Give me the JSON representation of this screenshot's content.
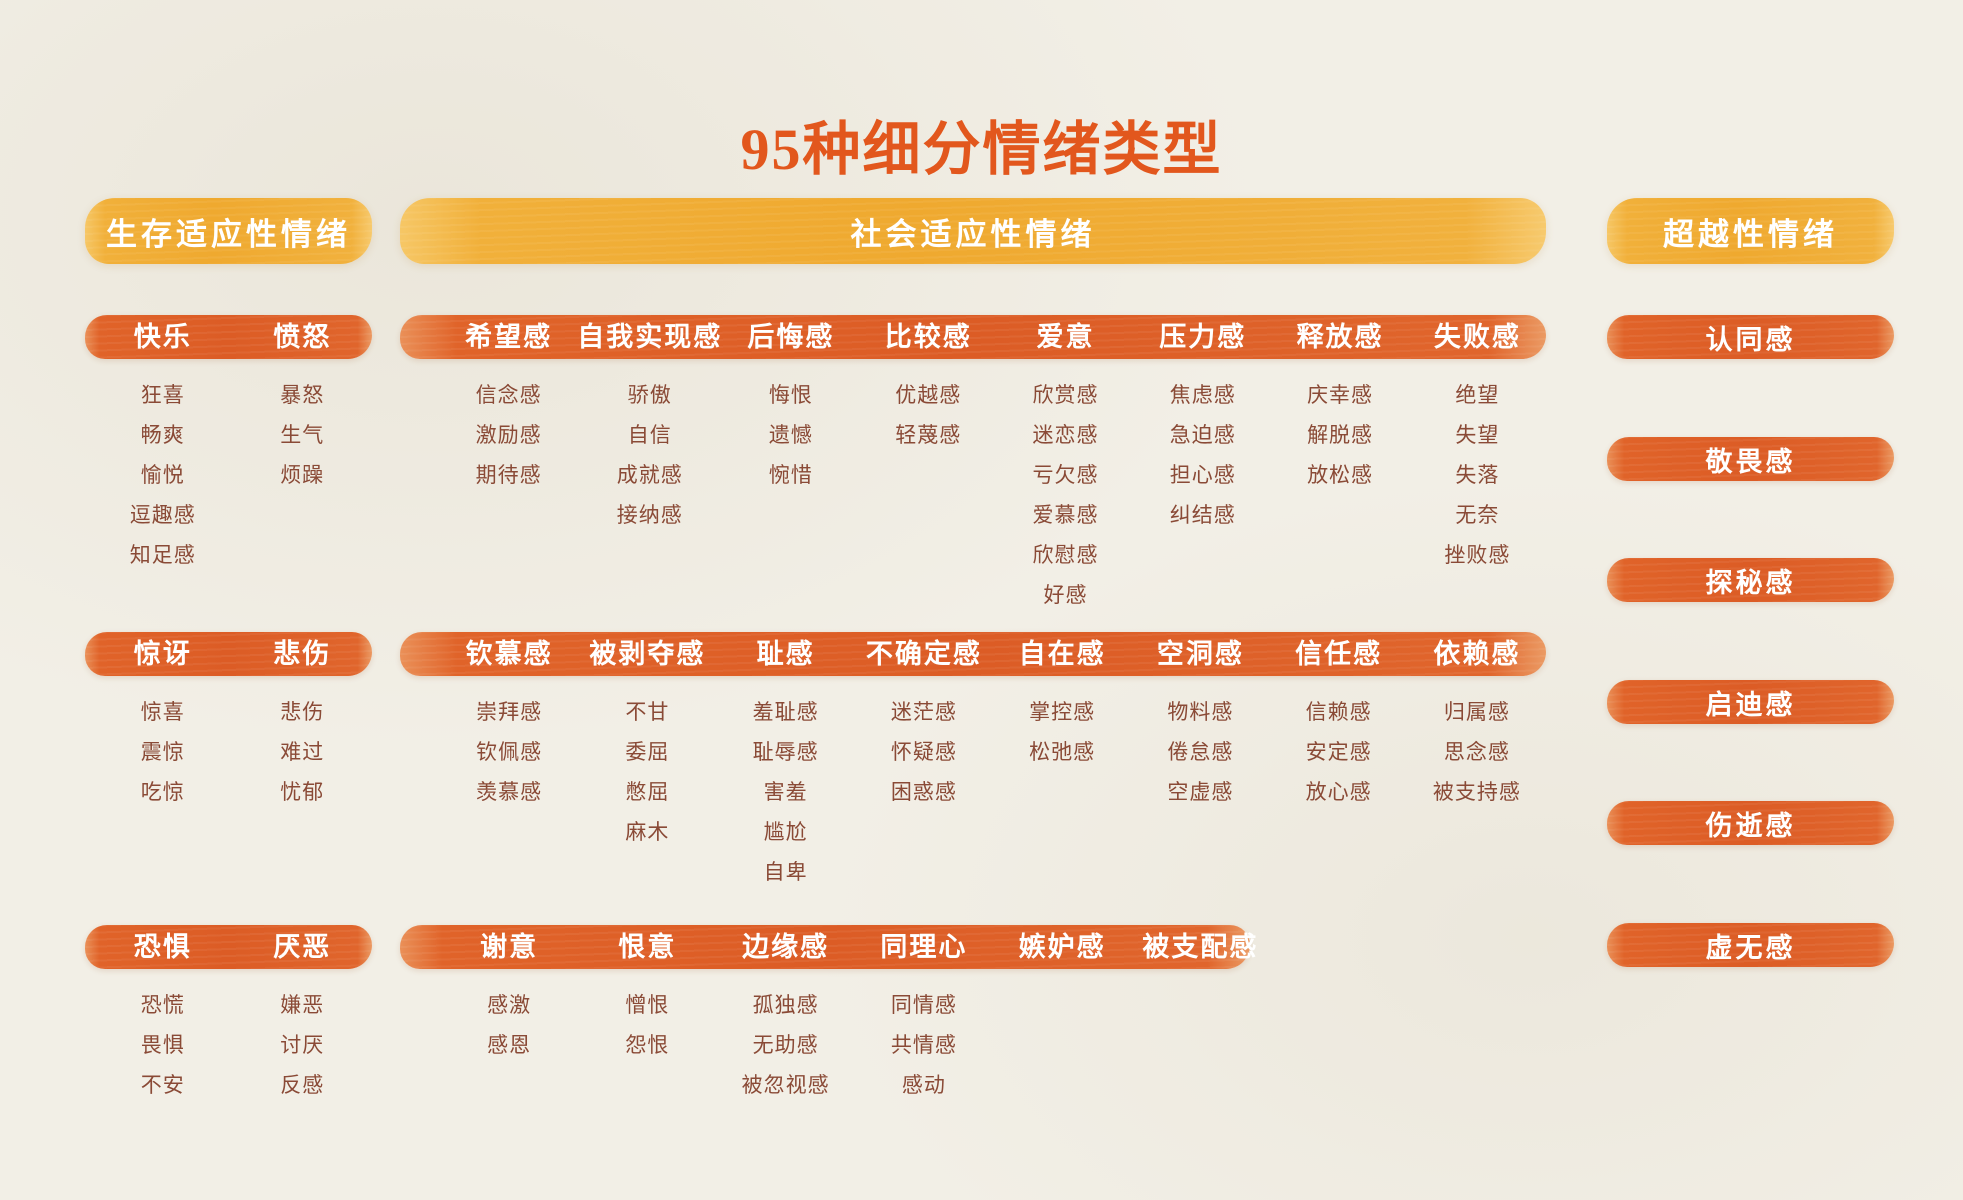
{
  "title": "95种细分情绪类型",
  "colors": {
    "background": "#F2EFE6",
    "title": "#E2571D",
    "banner_yellow": "#F0AC36",
    "bar_orange": "#DD5F27",
    "word_text": "#8A4A36",
    "label_text": "#FFFFFF"
  },
  "sections": [
    {
      "name": "survival",
      "banner": "生存适应性情绪",
      "rows": [
        {
          "groups": [
            {
              "header": "快乐",
              "words": [
                "狂喜",
                "畅爽",
                "愉悦",
                "逗趣感",
                "知足感"
              ]
            },
            {
              "header": "愤怒",
              "words": [
                "暴怒",
                "生气",
                "烦躁"
              ]
            }
          ]
        },
        {
          "groups": [
            {
              "header": "惊讶",
              "words": [
                "惊喜",
                "震惊",
                "吃惊"
              ]
            },
            {
              "header": "悲伤",
              "words": [
                "悲伤",
                "难过",
                "忧郁"
              ]
            }
          ]
        },
        {
          "groups": [
            {
              "header": "恐惧",
              "words": [
                "恐慌",
                "畏惧",
                "不安"
              ]
            },
            {
              "header": "厌恶",
              "words": [
                "嫌恶",
                "讨厌",
                "反感"
              ]
            }
          ]
        }
      ]
    },
    {
      "name": "social",
      "banner": "社会适应性情绪",
      "rows": [
        {
          "groups": [
            {
              "header": "希望感",
              "words": [
                "信念感",
                "激励感",
                "期待感"
              ]
            },
            {
              "header": "自我实现感",
              "words": [
                "骄傲",
                "自信",
                "成就感",
                "接纳感"
              ]
            },
            {
              "header": "后悔感",
              "words": [
                "悔恨",
                "遗憾",
                "惋惜"
              ]
            },
            {
              "header": "比较感",
              "words": [
                "优越感",
                "轻蔑感"
              ]
            },
            {
              "header": "爱意",
              "words": [
                "欣赏感",
                "迷恋感",
                "亏欠感",
                "爱慕感",
                "欣慰感",
                "好感"
              ]
            },
            {
              "header": "压力感",
              "words": [
                "焦虑感",
                "急迫感",
                "担心感",
                "纠结感"
              ]
            },
            {
              "header": "释放感",
              "words": [
                "庆幸感",
                "解脱感",
                "放松感"
              ]
            },
            {
              "header": "失败感",
              "words": [
                "绝望",
                "失望",
                "失落",
                "无奈",
                "挫败感"
              ]
            }
          ]
        },
        {
          "groups": [
            {
              "header": "钦慕感",
              "words": [
                "崇拜感",
                "钦佩感",
                "羡慕感"
              ]
            },
            {
              "header": "被剥夺感",
              "words": [
                "不甘",
                "委屈",
                "憋屈",
                "麻木"
              ]
            },
            {
              "header": "耻感",
              "words": [
                "羞耻感",
                "耻辱感",
                "害羞",
                "尴尬",
                "自卑"
              ]
            },
            {
              "header": "不确定感",
              "words": [
                "迷茫感",
                "怀疑感",
                "困惑感"
              ]
            },
            {
              "header": "自在感",
              "words": [
                "掌控感",
                "松弛感"
              ]
            },
            {
              "header": "空洞感",
              "words": [
                "物料感",
                "倦怠感",
                "空虚感"
              ]
            },
            {
              "header": "信任感",
              "words": [
                "信赖感",
                "安定感",
                "放心感"
              ]
            },
            {
              "header": "依赖感",
              "words": [
                "归属感",
                "思念感",
                "被支持感"
              ]
            }
          ]
        },
        {
          "groups": [
            {
              "header": "谢意",
              "words": [
                "感激",
                "感恩"
              ]
            },
            {
              "header": "恨意",
              "words": [
                "憎恨",
                "怨恨"
              ]
            },
            {
              "header": "边缘感",
              "words": [
                "孤独感",
                "无助感",
                "被忽视感"
              ]
            },
            {
              "header": "同理心",
              "words": [
                "同情感",
                "共情感",
                "感动"
              ]
            },
            {
              "header": "嫉妒感",
              "words": []
            },
            {
              "header": "被支配感",
              "words": []
            }
          ]
        }
      ]
    },
    {
      "name": "transcendent",
      "banner": "超越性情绪",
      "pills": [
        {
          "label": "认同感"
        },
        {
          "label": "敬畏感"
        },
        {
          "label": "探秘感"
        },
        {
          "label": "启迪感"
        },
        {
          "label": "伤逝感"
        },
        {
          "label": "虚无感"
        }
      ]
    }
  ]
}
